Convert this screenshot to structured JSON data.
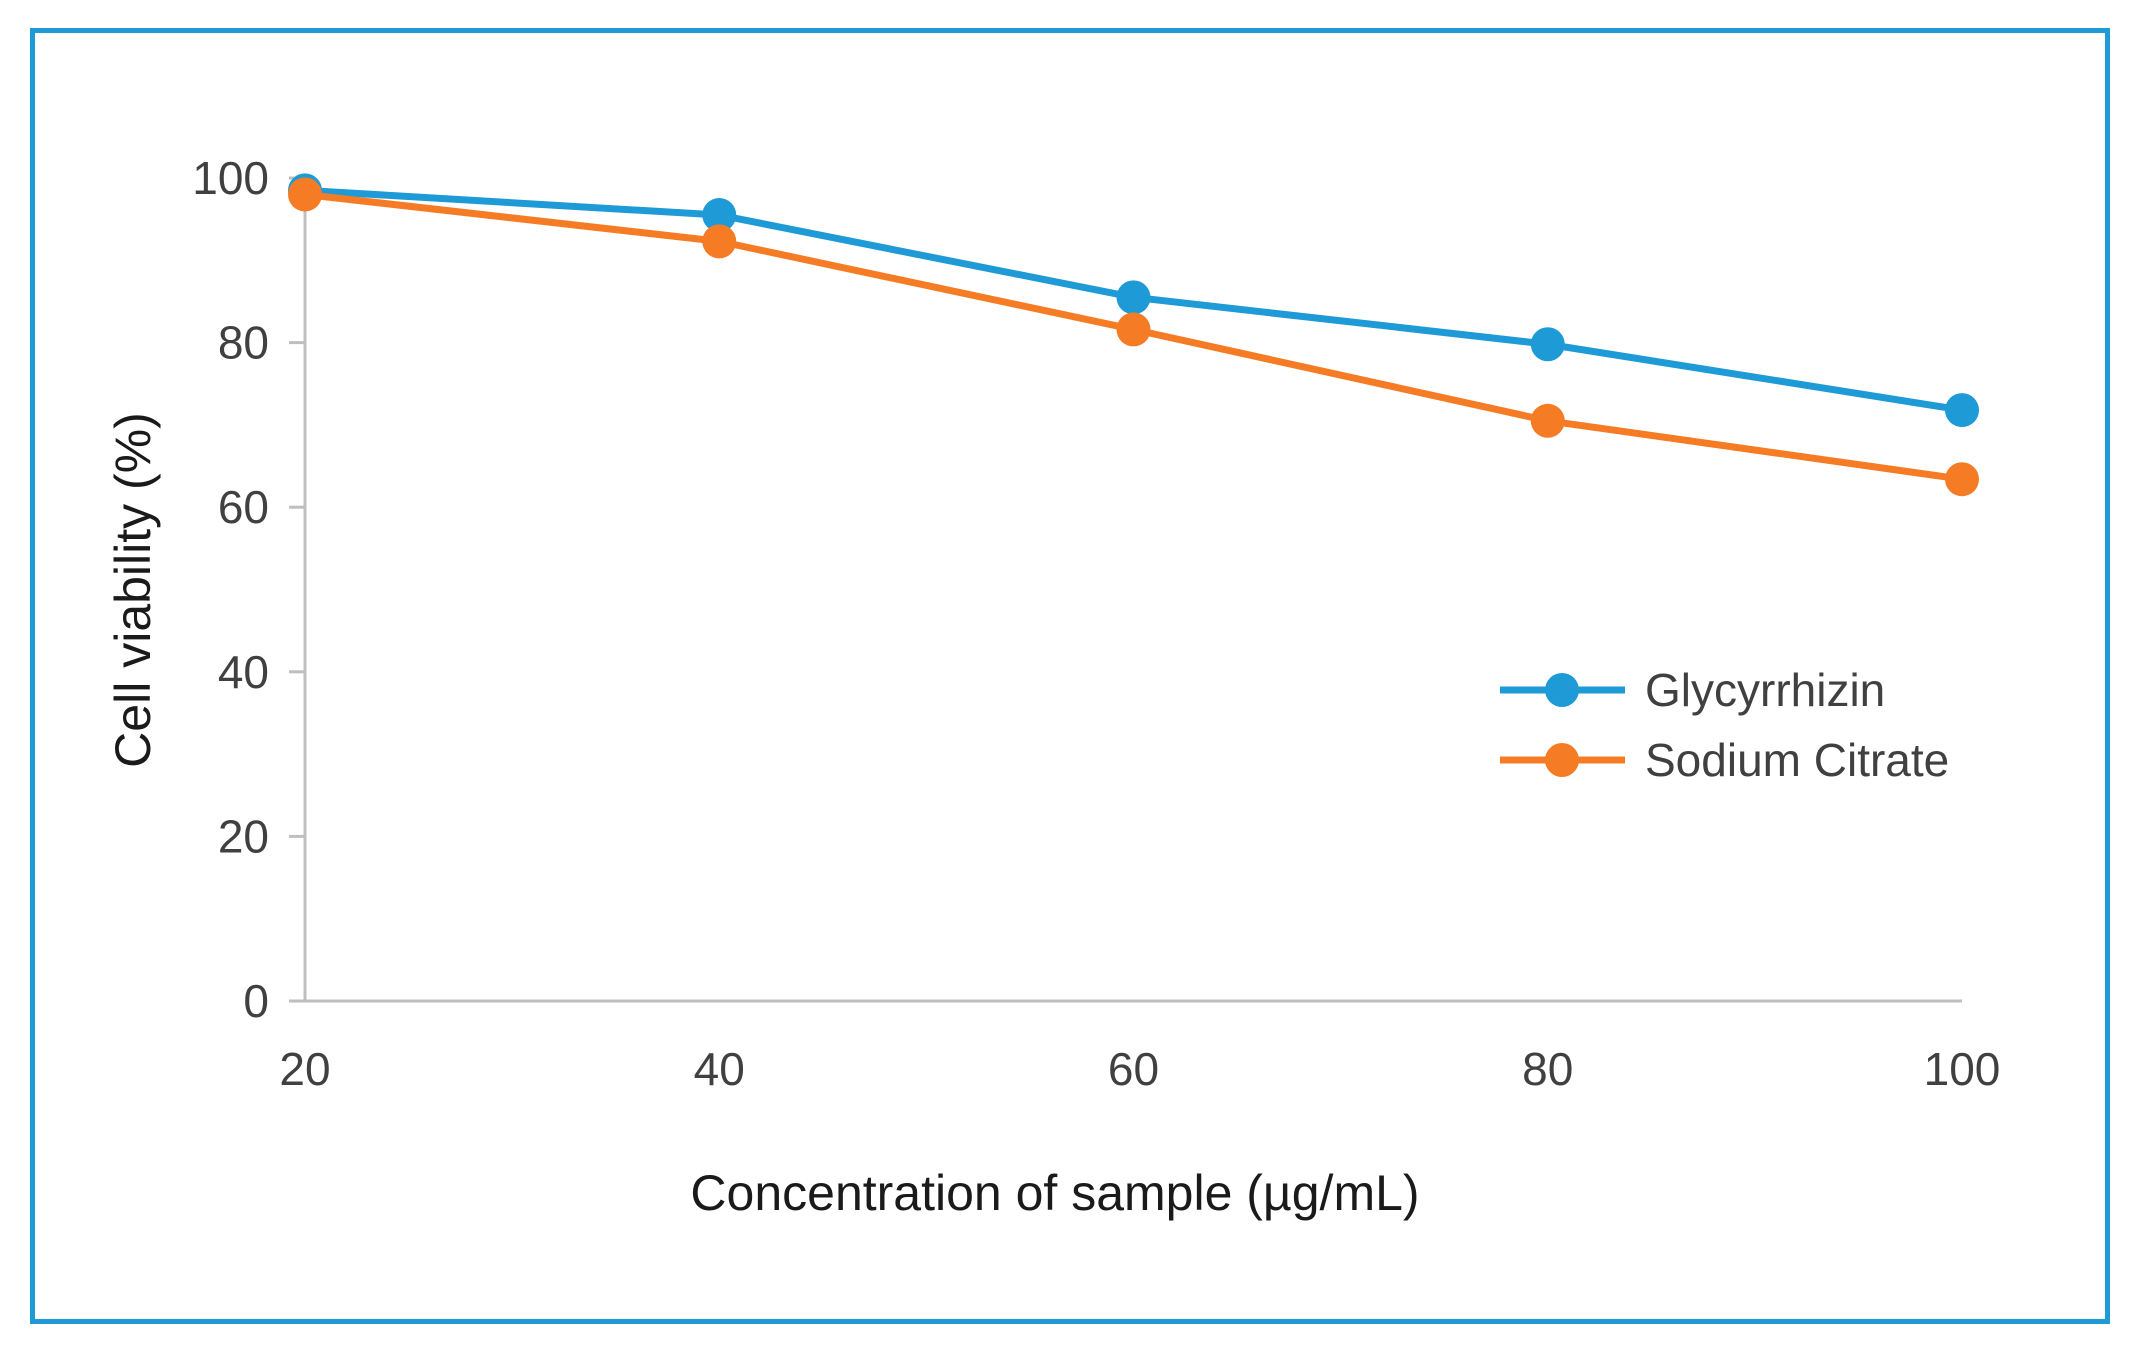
{
  "chart_data": {
    "type": "line",
    "x": [
      20,
      40,
      60,
      80,
      100
    ],
    "x_ticks": [
      "20",
      "40",
      "60",
      "80",
      "100"
    ],
    "y_ticks": [
      "0",
      "20",
      "40",
      "60",
      "80",
      "100"
    ],
    "ylim": [
      0,
      100
    ],
    "xlabel": "Concentration of sample (µg/mL)",
    "ylabel": "Cell viability (%)",
    "grid": false,
    "legend_position": "right-middle",
    "series": [
      {
        "name": "Glycyrrhizin",
        "color": "#1e9ad6",
        "values": [
          98.5,
          95.5,
          85.5,
          79.8,
          71.8
        ]
      },
      {
        "name": "Sodium Citrate",
        "color": "#f57c25",
        "values": [
          98.0,
          92.3,
          81.6,
          70.5,
          63.4
        ]
      }
    ]
  },
  "frame": {
    "border_color": "#1e9ad6"
  }
}
